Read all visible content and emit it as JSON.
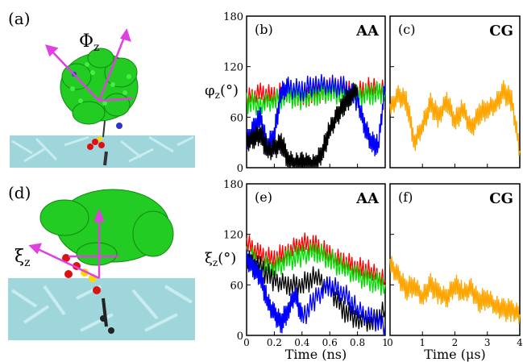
{
  "colors": {
    "black": "#000000",
    "red": "#ff0000",
    "green": "#00dd00",
    "blue": "#0000ff",
    "orange": "#ffa500",
    "magenta": "#e040e0",
    "molecule_green": "#22cc22",
    "surface_cyan": "#9fd6dc"
  },
  "panels": {
    "a": {
      "label": "(a)",
      "symbol": "Φ",
      "sub": "z"
    },
    "d": {
      "label": "(d)",
      "symbol": "ξ",
      "sub": "z"
    }
  },
  "chart_data": [
    {
      "id": "b",
      "type": "line",
      "panel_label": "(b)",
      "tag": "AA",
      "ylabel_symbol": "φ",
      "ylabel_sub": "z",
      "ylabel_unit": "(°)",
      "xlim": [
        0,
        1
      ],
      "ylim": [
        0,
        180
      ],
      "yticks": [
        "0",
        "60",
        "120",
        "180"
      ],
      "xticks": [],
      "series": [
        {
          "color_key": "red",
          "x": [
            0,
            0.1,
            0.2,
            0.3,
            0.4,
            0.5,
            0.6,
            0.7,
            0.8,
            0.9,
            1.0
          ],
          "y": [
            82,
            88,
            85,
            90,
            84,
            88,
            95,
            92,
            88,
            95,
            92
          ]
        },
        {
          "color_key": "green",
          "x": [
            0,
            0.1,
            0.2,
            0.3,
            0.4,
            0.5,
            0.6,
            0.7,
            0.8,
            0.9,
            1.0
          ],
          "y": [
            78,
            75,
            80,
            85,
            82,
            86,
            90,
            88,
            84,
            88,
            90
          ]
        },
        {
          "color_key": "blue",
          "x": [
            0,
            0.05,
            0.1,
            0.15,
            0.2,
            0.25,
            0.3,
            0.4,
            0.5,
            0.6,
            0.7,
            0.8,
            0.85,
            0.9,
            0.95,
            1.0
          ],
          "y": [
            30,
            45,
            60,
            25,
            40,
            90,
            95,
            92,
            100,
            98,
            95,
            80,
            50,
            30,
            25,
            100
          ]
        },
        {
          "color_key": "black",
          "x": [
            0,
            0.05,
            0.1,
            0.15,
            0.2,
            0.25,
            0.3,
            0.35,
            0.4,
            0.45,
            0.5,
            0.55,
            0.6,
            0.65,
            0.7,
            0.75,
            0.8
          ],
          "y": [
            30,
            35,
            40,
            20,
            22,
            30,
            10,
            5,
            5,
            3,
            5,
            20,
            45,
            60,
            75,
            85,
            95
          ]
        }
      ]
    },
    {
      "id": "c",
      "type": "line",
      "panel_label": "(c)",
      "tag": "CG",
      "xlim": [
        0,
        4
      ],
      "ylim": [
        0,
        180
      ],
      "xticks": [],
      "series": [
        {
          "color_key": "orange",
          "x": [
            0,
            0.25,
            0.5,
            0.75,
            1.0,
            1.25,
            1.5,
            1.75,
            2.0,
            2.25,
            2.5,
            2.75,
            3.0,
            3.25,
            3.5,
            3.75,
            4.0
          ],
          "y": [
            70,
            85,
            80,
            30,
            50,
            75,
            60,
            80,
            55,
            70,
            45,
            65,
            70,
            75,
            90,
            80,
            20
          ]
        }
      ]
    },
    {
      "id": "e",
      "type": "line",
      "panel_label": "(e)",
      "tag": "AA",
      "ylabel_symbol": "ξ",
      "ylabel_sub": "z",
      "ylabel_unit": "(°)",
      "xlabel": "Time (ns)",
      "xlim": [
        0,
        1
      ],
      "ylim": [
        0,
        180
      ],
      "yticks": [
        "0",
        "60",
        "120",
        "180"
      ],
      "xticks": [
        "0",
        "0.2",
        "0.4",
        "0.6",
        "0.8",
        "1"
      ],
      "series": [
        {
          "color_key": "red",
          "x": [
            0,
            0.1,
            0.2,
            0.3,
            0.4,
            0.5,
            0.6,
            0.7,
            0.8,
            0.9,
            1.0
          ],
          "y": [
            110,
            95,
            90,
            100,
            110,
            105,
            95,
            88,
            80,
            75,
            65
          ]
        },
        {
          "color_key": "green",
          "x": [
            0,
            0.1,
            0.2,
            0.3,
            0.4,
            0.5,
            0.6,
            0.7,
            0.8,
            0.9,
            1.0
          ],
          "y": [
            95,
            85,
            80,
            90,
            95,
            100,
            90,
            80,
            70,
            65,
            60
          ]
        },
        {
          "color_key": "black",
          "x": [
            0,
            0.1,
            0.2,
            0.3,
            0.4,
            0.5,
            0.6,
            0.7,
            0.8,
            0.9,
            1.0
          ],
          "y": [
            90,
            80,
            65,
            60,
            60,
            70,
            55,
            30,
            20,
            15,
            30
          ]
        },
        {
          "color_key": "blue",
          "x": [
            0,
            0.05,
            0.1,
            0.15,
            0.2,
            0.25,
            0.3,
            0.35,
            0.4,
            0.5,
            0.6,
            0.7,
            0.8,
            0.9,
            1.0
          ],
          "y": [
            90,
            80,
            70,
            40,
            25,
            15,
            30,
            50,
            20,
            45,
            60,
            50,
            30,
            20,
            12
          ]
        }
      ]
    },
    {
      "id": "f",
      "type": "line",
      "panel_label": "(f)",
      "tag": "CG",
      "xlabel": "Time (μs)",
      "xlim": [
        0,
        4
      ],
      "ylim": [
        0,
        180
      ],
      "xticks": [
        "0",
        "1",
        "2",
        "3",
        "4"
      ],
      "series": [
        {
          "color_key": "orange",
          "x": [
            0,
            0.25,
            0.5,
            0.75,
            1.0,
            1.25,
            1.5,
            1.75,
            2.0,
            2.25,
            2.5,
            2.75,
            3.0,
            3.25,
            3.5,
            3.75,
            4.0
          ],
          "y": [
            85,
            70,
            55,
            60,
            45,
            60,
            50,
            45,
            60,
            50,
            55,
            40,
            45,
            35,
            30,
            30,
            25
          ]
        }
      ]
    }
  ]
}
